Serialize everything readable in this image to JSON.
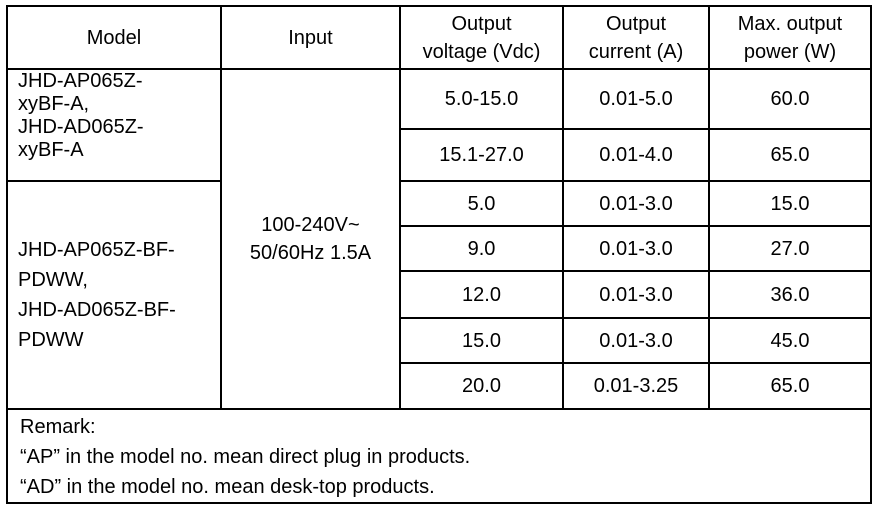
{
  "headers": {
    "model": "Model",
    "input": "Input",
    "voltage": "Output voltage (Vdc)",
    "current": "Output current (A)",
    "power": "Max. output power (W)"
  },
  "groups": [
    {
      "model": "JHD-AP065Z-xyBF-A, JHD-AD065Z-xyBF-A",
      "model_lines": [
        "JHD-AP065Z-",
        "xyBF-A,",
        "JHD-AD065Z-",
        "xyBF-A"
      ],
      "rows": [
        {
          "voltage": "5.0-15.0",
          "current": "0.01-5.0",
          "power": "60.0"
        },
        {
          "voltage": "15.1-27.0",
          "current": "0.01-4.0",
          "power": "65.0"
        }
      ]
    },
    {
      "model": "JHD-AP065Z-BF-PDWW, JHD-AD065Z-BF-PDWW",
      "model_lines": [
        "JHD-AP065Z-BF-",
        "PDWW,",
        "JHD-AD065Z-BF-",
        "PDWW"
      ],
      "rows": [
        {
          "voltage": "5.0",
          "current": "0.01-3.0",
          "power": "15.0"
        },
        {
          "voltage": "9.0",
          "current": "0.01-3.0",
          "power": "27.0"
        },
        {
          "voltage": "12.0",
          "current": "0.01-3.0",
          "power": "36.0"
        },
        {
          "voltage": "15.0",
          "current": "0.01-3.0",
          "power": "45.0"
        },
        {
          "voltage": "20.0",
          "current": "0.01-3.25",
          "power": "65.0"
        }
      ]
    }
  ],
  "input": {
    "line1": "100-240V~",
    "line2": "50/60Hz 1.5A"
  },
  "remark": {
    "title": "Remark:",
    "lines": [
      "“AP” in the model no. mean direct plug in products.",
      "“AD” in the model no. mean desk-top products."
    ]
  }
}
